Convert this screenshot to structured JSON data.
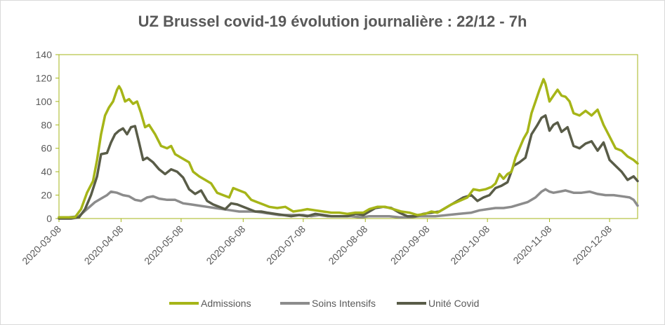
{
  "chart_data": {
    "type": "line",
    "title": "UZ Brussel covid-19 évolution journalière : 22/12 - 7h",
    "xlabel": "",
    "ylabel": "",
    "ylim": [
      0,
      140
    ],
    "yticks": [
      0,
      20,
      40,
      60,
      80,
      100,
      120,
      140
    ],
    "xlim": [
      "2020-03-08",
      "2020-12-22"
    ],
    "xticks": [
      "2020-03-08",
      "2020-04-08",
      "2020-05-08",
      "2020-06-08",
      "2020-07-08",
      "2020-08-08",
      "2020-09-08",
      "2020-10-08",
      "2020-11-08",
      "2020-12-08"
    ],
    "grid": false,
    "legend": "bottom",
    "series": [
      {
        "name": "Admissions",
        "color": "#a6b518",
        "points": [
          [
            "2020-03-08",
            1
          ],
          [
            "2020-03-12",
            1
          ],
          [
            "2020-03-16",
            1
          ],
          [
            "2020-03-19",
            8
          ],
          [
            "2020-03-22",
            22
          ],
          [
            "2020-03-25",
            32
          ],
          [
            "2020-03-27",
            50
          ],
          [
            "2020-03-29",
            72
          ],
          [
            "2020-03-31",
            88
          ],
          [
            "2020-04-02",
            95
          ],
          [
            "2020-04-04",
            100
          ],
          [
            "2020-04-06",
            110
          ],
          [
            "2020-04-07",
            113
          ],
          [
            "2020-04-08",
            110
          ],
          [
            "2020-04-10",
            100
          ],
          [
            "2020-04-12",
            102
          ],
          [
            "2020-04-14",
            98
          ],
          [
            "2020-04-16",
            100
          ],
          [
            "2020-04-18",
            90
          ],
          [
            "2020-04-20",
            78
          ],
          [
            "2020-04-22",
            80
          ],
          [
            "2020-04-25",
            72
          ],
          [
            "2020-04-28",
            62
          ],
          [
            "2020-05-01",
            60
          ],
          [
            "2020-05-03",
            62
          ],
          [
            "2020-05-05",
            55
          ],
          [
            "2020-05-08",
            52
          ],
          [
            "2020-05-12",
            48
          ],
          [
            "2020-05-14",
            40
          ],
          [
            "2020-05-17",
            36
          ],
          [
            "2020-05-20",
            33
          ],
          [
            "2020-05-23",
            30
          ],
          [
            "2020-05-26",
            22
          ],
          [
            "2020-05-29",
            20
          ],
          [
            "2020-06-01",
            18
          ],
          [
            "2020-06-03",
            26
          ],
          [
            "2020-06-06",
            24
          ],
          [
            "2020-06-09",
            22
          ],
          [
            "2020-06-12",
            16
          ],
          [
            "2020-06-15",
            14
          ],
          [
            "2020-06-18",
            12
          ],
          [
            "2020-06-21",
            10
          ],
          [
            "2020-06-25",
            9
          ],
          [
            "2020-06-29",
            10
          ],
          [
            "2020-07-03",
            6
          ],
          [
            "2020-07-07",
            7
          ],
          [
            "2020-07-10",
            8
          ],
          [
            "2020-07-14",
            7
          ],
          [
            "2020-07-18",
            6
          ],
          [
            "2020-07-22",
            5
          ],
          [
            "2020-07-26",
            5
          ],
          [
            "2020-07-30",
            4
          ],
          [
            "2020-08-03",
            5
          ],
          [
            "2020-08-07",
            5
          ],
          [
            "2020-08-10",
            8
          ],
          [
            "2020-08-14",
            10
          ],
          [
            "2020-08-18",
            10
          ],
          [
            "2020-08-22",
            8
          ],
          [
            "2020-08-26",
            6
          ],
          [
            "2020-08-30",
            5
          ],
          [
            "2020-09-03",
            3
          ],
          [
            "2020-09-07",
            4
          ],
          [
            "2020-09-10",
            6
          ],
          [
            "2020-09-13",
            5
          ],
          [
            "2020-09-16",
            8
          ],
          [
            "2020-09-20",
            12
          ],
          [
            "2020-09-24",
            15
          ],
          [
            "2020-09-28",
            18
          ],
          [
            "2020-10-01",
            25
          ],
          [
            "2020-10-04",
            24
          ],
          [
            "2020-10-07",
            25
          ],
          [
            "2020-10-10",
            27
          ],
          [
            "2020-10-12",
            30
          ],
          [
            "2020-10-14",
            38
          ],
          [
            "2020-10-16",
            34
          ],
          [
            "2020-10-18",
            38
          ],
          [
            "2020-10-20",
            40
          ],
          [
            "2020-10-22",
            52
          ],
          [
            "2020-10-24",
            60
          ],
          [
            "2020-10-26",
            68
          ],
          [
            "2020-10-28",
            74
          ],
          [
            "2020-10-30",
            90
          ],
          [
            "2020-11-01",
            100
          ],
          [
            "2020-11-03",
            110
          ],
          [
            "2020-11-05",
            119
          ],
          [
            "2020-11-06",
            115
          ],
          [
            "2020-11-08",
            100
          ],
          [
            "2020-11-10",
            105
          ],
          [
            "2020-11-12",
            110
          ],
          [
            "2020-11-14",
            105
          ],
          [
            "2020-11-16",
            104
          ],
          [
            "2020-11-18",
            100
          ],
          [
            "2020-11-20",
            90
          ],
          [
            "2020-11-23",
            88
          ],
          [
            "2020-11-26",
            92
          ],
          [
            "2020-11-29",
            88
          ],
          [
            "2020-12-02",
            93
          ],
          [
            "2020-12-05",
            80
          ],
          [
            "2020-12-08",
            70
          ],
          [
            "2020-12-11",
            60
          ],
          [
            "2020-12-14",
            58
          ],
          [
            "2020-12-17",
            53
          ],
          [
            "2020-12-20",
            50
          ],
          [
            "2020-12-22",
            47
          ]
        ]
      },
      {
        "name": "Soins Intensifs",
        "color": "#8c8c8c",
        "points": [
          [
            "2020-03-08",
            1
          ],
          [
            "2020-03-13",
            1
          ],
          [
            "2020-03-18",
            2
          ],
          [
            "2020-03-22",
            8
          ],
          [
            "2020-03-26",
            14
          ],
          [
            "2020-03-30",
            18
          ],
          [
            "2020-04-01",
            20
          ],
          [
            "2020-04-03",
            23
          ],
          [
            "2020-04-06",
            22
          ],
          [
            "2020-04-09",
            20
          ],
          [
            "2020-04-12",
            19
          ],
          [
            "2020-04-15",
            16
          ],
          [
            "2020-04-18",
            15
          ],
          [
            "2020-04-21",
            18
          ],
          [
            "2020-04-24",
            19
          ],
          [
            "2020-04-27",
            17
          ],
          [
            "2020-05-01",
            16
          ],
          [
            "2020-05-05",
            16
          ],
          [
            "2020-05-09",
            13
          ],
          [
            "2020-05-13",
            12
          ],
          [
            "2020-05-17",
            11
          ],
          [
            "2020-05-21",
            10
          ],
          [
            "2020-05-25",
            9
          ],
          [
            "2020-05-29",
            8
          ],
          [
            "2020-06-02",
            7
          ],
          [
            "2020-06-06",
            6
          ],
          [
            "2020-06-10",
            6
          ],
          [
            "2020-06-14",
            6
          ],
          [
            "2020-06-18",
            5
          ],
          [
            "2020-06-22",
            4
          ],
          [
            "2020-06-26",
            3
          ],
          [
            "2020-06-30",
            3
          ],
          [
            "2020-07-04",
            3
          ],
          [
            "2020-07-08",
            3
          ],
          [
            "2020-07-12",
            2
          ],
          [
            "2020-07-16",
            3
          ],
          [
            "2020-07-20",
            2
          ],
          [
            "2020-07-24",
            2
          ],
          [
            "2020-07-28",
            2
          ],
          [
            "2020-08-01",
            2
          ],
          [
            "2020-08-06",
            1
          ],
          [
            "2020-08-10",
            2
          ],
          [
            "2020-08-15",
            2
          ],
          [
            "2020-08-20",
            2
          ],
          [
            "2020-08-25",
            1
          ],
          [
            "2020-08-30",
            1
          ],
          [
            "2020-09-04",
            2
          ],
          [
            "2020-09-08",
            2
          ],
          [
            "2020-09-12",
            2
          ],
          [
            "2020-09-18",
            3
          ],
          [
            "2020-09-24",
            4
          ],
          [
            "2020-09-30",
            5
          ],
          [
            "2020-10-04",
            7
          ],
          [
            "2020-10-08",
            8
          ],
          [
            "2020-10-12",
            9
          ],
          [
            "2020-10-16",
            9
          ],
          [
            "2020-10-20",
            10
          ],
          [
            "2020-10-24",
            12
          ],
          [
            "2020-10-28",
            14
          ],
          [
            "2020-11-01",
            18
          ],
          [
            "2020-11-04",
            23
          ],
          [
            "2020-11-06",
            25
          ],
          [
            "2020-11-08",
            23
          ],
          [
            "2020-11-10",
            22
          ],
          [
            "2020-11-13",
            23
          ],
          [
            "2020-11-16",
            24
          ],
          [
            "2020-11-20",
            22
          ],
          [
            "2020-11-24",
            22
          ],
          [
            "2020-11-28",
            23
          ],
          [
            "2020-12-02",
            21
          ],
          [
            "2020-12-06",
            20
          ],
          [
            "2020-12-10",
            20
          ],
          [
            "2020-12-14",
            19
          ],
          [
            "2020-12-18",
            18
          ],
          [
            "2020-12-20",
            16
          ],
          [
            "2020-12-22",
            11
          ]
        ]
      },
      {
        "name": "Unité Covid",
        "color": "#595c48",
        "points": [
          [
            "2020-03-08",
            0
          ],
          [
            "2020-03-14",
            0
          ],
          [
            "2020-03-18",
            1
          ],
          [
            "2020-03-21",
            8
          ],
          [
            "2020-03-24",
            20
          ],
          [
            "2020-03-27",
            36
          ],
          [
            "2020-03-29",
            55
          ],
          [
            "2020-04-01",
            56
          ],
          [
            "2020-04-03",
            65
          ],
          [
            "2020-04-05",
            72
          ],
          [
            "2020-04-07",
            75
          ],
          [
            "2020-04-09",
            77
          ],
          [
            "2020-04-11",
            72
          ],
          [
            "2020-04-13",
            78
          ],
          [
            "2020-04-15",
            79
          ],
          [
            "2020-04-17",
            65
          ],
          [
            "2020-04-19",
            50
          ],
          [
            "2020-04-21",
            52
          ],
          [
            "2020-04-24",
            48
          ],
          [
            "2020-04-27",
            42
          ],
          [
            "2020-04-30",
            38
          ],
          [
            "2020-05-03",
            42
          ],
          [
            "2020-05-06",
            40
          ],
          [
            "2020-05-09",
            35
          ],
          [
            "2020-05-12",
            25
          ],
          [
            "2020-05-15",
            21
          ],
          [
            "2020-05-18",
            24
          ],
          [
            "2020-05-21",
            15
          ],
          [
            "2020-05-24",
            12
          ],
          [
            "2020-05-27",
            10
          ],
          [
            "2020-05-30",
            8
          ],
          [
            "2020-06-02",
            13
          ],
          [
            "2020-06-05",
            12
          ],
          [
            "2020-06-08",
            10
          ],
          [
            "2020-06-11",
            8
          ],
          [
            "2020-06-14",
            6
          ],
          [
            "2020-06-17",
            6
          ],
          [
            "2020-06-20",
            5
          ],
          [
            "2020-06-24",
            4
          ],
          [
            "2020-06-28",
            3
          ],
          [
            "2020-07-02",
            2
          ],
          [
            "2020-07-06",
            3
          ],
          [
            "2020-07-10",
            2
          ],
          [
            "2020-07-14",
            4
          ],
          [
            "2020-07-18",
            3
          ],
          [
            "2020-07-22",
            2
          ],
          [
            "2020-07-26",
            2
          ],
          [
            "2020-07-30",
            2
          ],
          [
            "2020-08-03",
            4
          ],
          [
            "2020-08-07",
            3
          ],
          [
            "2020-08-10",
            6
          ],
          [
            "2020-08-13",
            9
          ],
          [
            "2020-08-17",
            10
          ],
          [
            "2020-08-21",
            9
          ],
          [
            "2020-08-25",
            5
          ],
          [
            "2020-08-29",
            2
          ],
          [
            "2020-09-02",
            2
          ],
          [
            "2020-09-06",
            4
          ],
          [
            "2020-09-10",
            5
          ],
          [
            "2020-09-14",
            6
          ],
          [
            "2020-09-18",
            10
          ],
          [
            "2020-09-22",
            14
          ],
          [
            "2020-09-26",
            18
          ],
          [
            "2020-09-30",
            20
          ],
          [
            "2020-10-03",
            15
          ],
          [
            "2020-10-06",
            18
          ],
          [
            "2020-10-09",
            20
          ],
          [
            "2020-10-12",
            26
          ],
          [
            "2020-10-15",
            28
          ],
          [
            "2020-10-18",
            31
          ],
          [
            "2020-10-21",
            45
          ],
          [
            "2020-10-24",
            48
          ],
          [
            "2020-10-27",
            52
          ],
          [
            "2020-10-30",
            72
          ],
          [
            "2020-11-02",
            80
          ],
          [
            "2020-11-04",
            86
          ],
          [
            "2020-11-06",
            88
          ],
          [
            "2020-11-08",
            75
          ],
          [
            "2020-11-10",
            80
          ],
          [
            "2020-11-12",
            82
          ],
          [
            "2020-11-14",
            74
          ],
          [
            "2020-11-17",
            78
          ],
          [
            "2020-11-20",
            62
          ],
          [
            "2020-11-23",
            60
          ],
          [
            "2020-11-26",
            64
          ],
          [
            "2020-11-29",
            66
          ],
          [
            "2020-12-02",
            58
          ],
          [
            "2020-12-05",
            65
          ],
          [
            "2020-12-08",
            50
          ],
          [
            "2020-12-11",
            45
          ],
          [
            "2020-12-14",
            40
          ],
          [
            "2020-12-17",
            33
          ],
          [
            "2020-12-20",
            36
          ],
          [
            "2020-12-22",
            32
          ]
        ]
      }
    ]
  }
}
